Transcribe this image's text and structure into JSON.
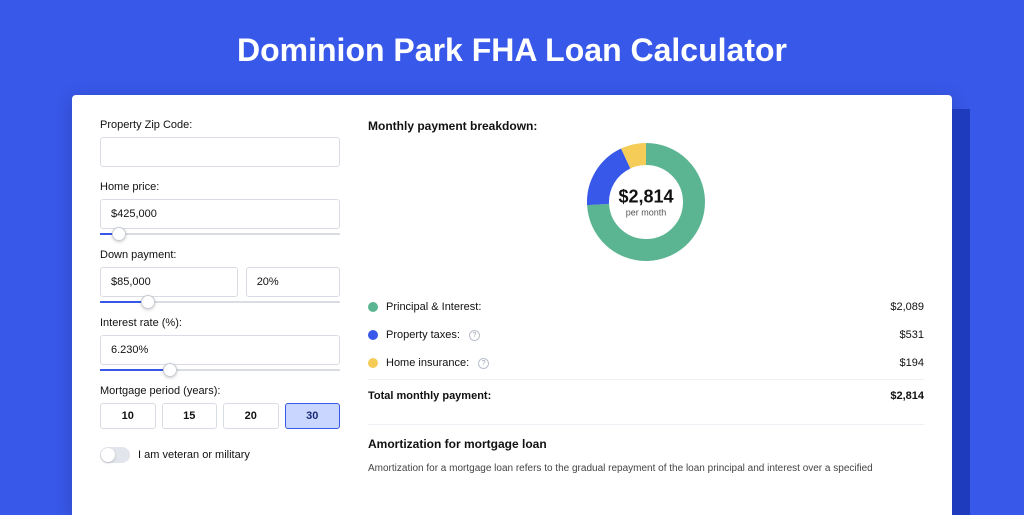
{
  "page": {
    "title": "Dominion Park FHA Loan Calculator",
    "background_color": "#3858e9",
    "card_background": "#ffffff",
    "shadow_strip_color": "#1f3bbd"
  },
  "form": {
    "zip_label": "Property Zip Code:",
    "zip_value": "",
    "home_price_label": "Home price:",
    "home_price_value": "$425,000",
    "home_price_slider_percent": 8,
    "down_payment_label": "Down payment:",
    "down_payment_value": "$85,000",
    "down_payment_percent": "20%",
    "down_payment_slider_percent": 20,
    "interest_label": "Interest rate (%):",
    "interest_value": "6.230%",
    "interest_slider_percent": 29,
    "period_label": "Mortgage period (years):",
    "periods": [
      {
        "label": "10",
        "selected": false
      },
      {
        "label": "15",
        "selected": false
      },
      {
        "label": "20",
        "selected": false
      },
      {
        "label": "30",
        "selected": true
      }
    ],
    "toggle_on": false,
    "toggle_label": "I am veteran or military"
  },
  "breakdown": {
    "title": "Monthly payment breakdown:",
    "donut": {
      "amount": "$2,814",
      "subtext": "per month",
      "slices": [
        {
          "name": "principal_interest",
          "value": 2089,
          "color": "#5cb592",
          "start_deg": 0,
          "end_deg": 267
        },
        {
          "name": "property_taxes",
          "value": 531,
          "color": "#3858e9",
          "start_deg": 267,
          "end_deg": 335
        },
        {
          "name": "home_insurance",
          "value": 194,
          "color": "#f4cc57",
          "start_deg": 335,
          "end_deg": 360
        }
      ],
      "thickness": 22
    },
    "rows": [
      {
        "dot": "#5cb592",
        "label": "Principal & Interest:",
        "info": false,
        "amount": "$2,089"
      },
      {
        "dot": "#3858e9",
        "label": "Property taxes:",
        "info": true,
        "amount": "$531"
      },
      {
        "dot": "#f4cc57",
        "label": "Home insurance:",
        "info": true,
        "amount": "$194"
      }
    ],
    "total_label": "Total monthly payment:",
    "total_amount": "$2,814"
  },
  "amortization": {
    "title": "Amortization for mortgage loan",
    "text": "Amortization for a mortgage loan refers to the gradual repayment of the loan principal and interest over a specified"
  }
}
